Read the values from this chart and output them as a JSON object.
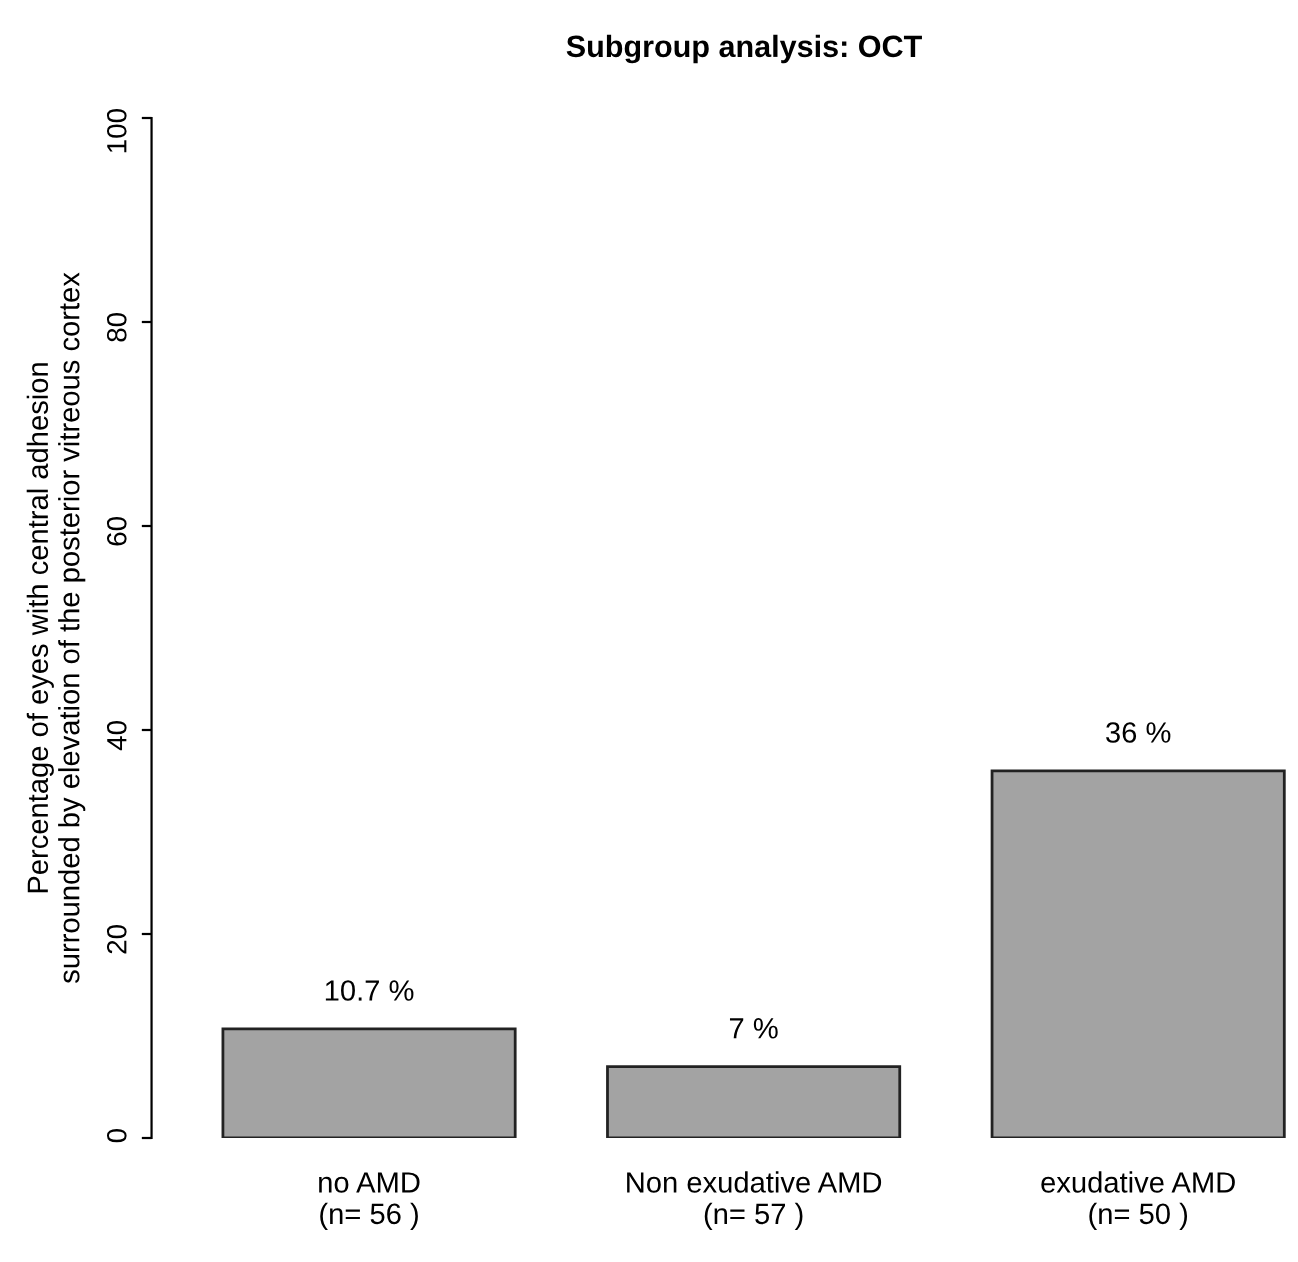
{
  "chart_data": {
    "type": "bar",
    "title": "Subgroup analysis: OCT",
    "ylabel": "Percentage of eyes with central adhesion\nsurrounded by elevation of the posterior vitreous cortex",
    "categories": [
      "no AMD\n(n= 56 )",
      "Non exudative AMD\n(n= 57 )",
      "exudative AMD\n(n= 50 )"
    ],
    "values": [
      10.7,
      7,
      36
    ],
    "value_labels": [
      "10.7 %",
      "7 %",
      "36 %"
    ],
    "color": "#a3a3a3",
    "ylim": [
      0,
      100
    ],
    "yticks": [
      0,
      20,
      40,
      60,
      80,
      100
    ],
    "grid": false
  }
}
